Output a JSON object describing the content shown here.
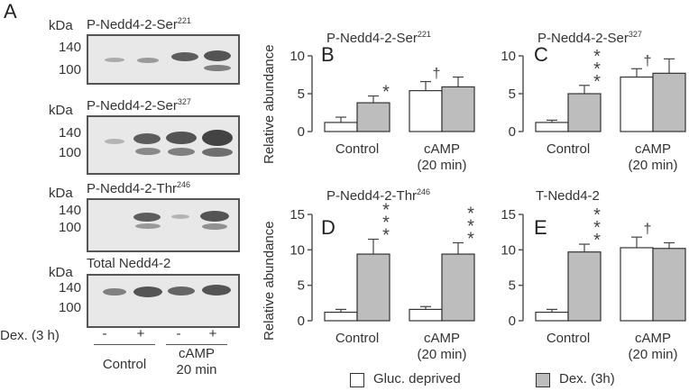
{
  "western_blots": {
    "panel_letter": "A",
    "kda_label": "kDa",
    "blots": [
      {
        "title": "P-Nedd4-2-Ser",
        "superscript": "221",
        "mw": [
          "140",
          "100"
        ]
      },
      {
        "title": "P-Nedd4-2-Ser",
        "superscript": "327",
        "mw": [
          "140",
          "100"
        ]
      },
      {
        "title": "P-Nedd4-2-Thr",
        "superscript": "246",
        "mw": [
          "140",
          "100"
        ]
      },
      {
        "title": "Total Nedd4-2",
        "superscript": "",
        "mw": [
          "140",
          "100"
        ]
      }
    ],
    "dex_label": "Dex. (3 h)",
    "lane_signs": [
      "-",
      "+",
      "-",
      "+"
    ],
    "group_labels": [
      "Control",
      "cAMP",
      "20 min"
    ]
  },
  "y_axis_label": "Relative abundance",
  "legend": {
    "gluc_label": "Gluc. deprived",
    "dex_label": "Dex. (3h)",
    "colors": {
      "gluc": "#ffffff",
      "dex": "#bdbdbd"
    }
  },
  "chart_data": [
    {
      "type": "bar",
      "panel": "B",
      "title": "P-Nedd4-2-Ser",
      "superscript": "221",
      "categories": [
        "Control",
        "cAMP\n(20 min)"
      ],
      "ylim": [
        0,
        10
      ],
      "yticks": [
        0,
        5,
        10
      ],
      "series": [
        {
          "name": "Gluc. deprived",
          "values": [
            1.2,
            5.4
          ],
          "errors": [
            0.7,
            1.2
          ]
        },
        {
          "name": "Dex. (3h)",
          "values": [
            3.8,
            5.9
          ],
          "errors": [
            0.9,
            1.3
          ]
        }
      ],
      "annotations": [
        {
          "group": 0,
          "series": 1,
          "symbol": "*",
          "count": 1
        },
        {
          "group": 1,
          "series": 0,
          "symbol": "†",
          "count": 1
        }
      ]
    },
    {
      "type": "bar",
      "panel": "C",
      "title": "P-Nedd4-2-Ser",
      "superscript": "327",
      "categories": [
        "Control",
        "cAMP\n(20 min)"
      ],
      "ylim": [
        0,
        10
      ],
      "yticks": [
        0,
        5,
        10
      ],
      "series": [
        {
          "name": "Gluc. deprived",
          "values": [
            1.2,
            7.2
          ],
          "errors": [
            0.3,
            1.1
          ]
        },
        {
          "name": "Dex. (3h)",
          "values": [
            5.0,
            7.7
          ],
          "errors": [
            1.1,
            1.9
          ]
        }
      ],
      "annotations": [
        {
          "group": 0,
          "series": 1,
          "symbol": "*",
          "count": 3
        },
        {
          "group": 1,
          "series": 0,
          "symbol": "†",
          "count": 1
        }
      ]
    },
    {
      "type": "bar",
      "panel": "D",
      "title": "P-Nedd4-2-Thr",
      "superscript": "246",
      "categories": [
        "Control",
        "cAMP\n(20 min)"
      ],
      "ylim": [
        0,
        15
      ],
      "yticks": [
        0,
        5,
        10,
        15
      ],
      "series": [
        {
          "name": "Gluc. deprived",
          "values": [
            1.2,
            1.6
          ],
          "errors": [
            0.4,
            0.4
          ]
        },
        {
          "name": "Dex. (3h)",
          "values": [
            9.4,
            9.4
          ],
          "errors": [
            2.1,
            1.6
          ]
        }
      ],
      "annotations": [
        {
          "group": 0,
          "series": 1,
          "symbol": "*",
          "count": 3
        },
        {
          "group": 1,
          "series": 1,
          "symbol": "*",
          "count": 3
        }
      ]
    },
    {
      "type": "bar",
      "panel": "E",
      "title": "T-Nedd4-2",
      "superscript": "",
      "categories": [
        "Control",
        "cAMP\n(20 min)"
      ],
      "ylim": [
        0,
        15
      ],
      "yticks": [
        0,
        5,
        10,
        15
      ],
      "series": [
        {
          "name": "Gluc. deprived",
          "values": [
            1.2,
            10.3
          ],
          "errors": [
            0.4,
            1.5
          ]
        },
        {
          "name": "Dex. (3h)",
          "values": [
            9.7,
            10.2
          ],
          "errors": [
            1.1,
            0.8
          ]
        }
      ],
      "annotations": [
        {
          "group": 0,
          "series": 1,
          "symbol": "*",
          "count": 3
        },
        {
          "group": 1,
          "series": 0,
          "symbol": "†",
          "count": 1
        }
      ]
    }
  ]
}
